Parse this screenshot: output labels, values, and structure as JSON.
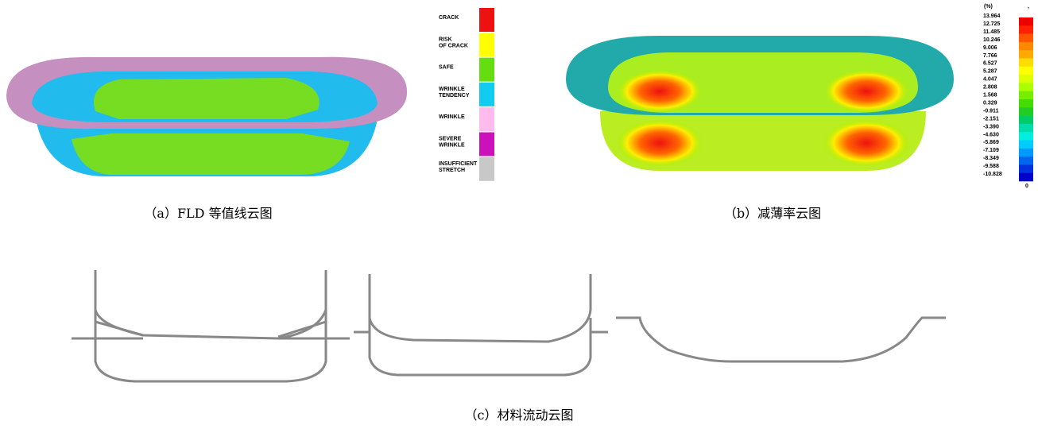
{
  "panel_a": {
    "caption": "（a）FLD 等值线云图",
    "legend": [
      {
        "label": "CRACK",
        "color": "#ee1111"
      },
      {
        "label": "RISK OF CRACK",
        "color": "#ffff00"
      },
      {
        "label": "SAFE",
        "color": "#66dd11"
      },
      {
        "label": "WRINKLE TENDENCY",
        "color": "#11ccee"
      },
      {
        "label": "WRINKLE",
        "color": "#ffbbee"
      },
      {
        "label": "SEVERE WRINKLE",
        "color": "#cc11bb"
      },
      {
        "label": "INSUFFICIENT STRETCH",
        "color": "#c8c8c8"
      }
    ]
  },
  "panel_b": {
    "caption": "（b）减薄率云图",
    "unit": "(%)",
    "top_mark": ",",
    "bottom_mark": "0",
    "labels": [
      "13.964",
      "12.725",
      "11.485",
      "10.246",
      "9.006",
      "7.766",
      "6.527",
      "5.287",
      "4.047",
      "2.808",
      "1.568",
      "0.329",
      "-0.911",
      "-2.151",
      "-3.390",
      "-4.630",
      "-5.869",
      "-7.109",
      "-8.349",
      "-9.588",
      "-10.828"
    ],
    "colors": [
      "#ee0000",
      "#ff2200",
      "#ff5500",
      "#ff8800",
      "#ffaa00",
      "#ffdd00",
      "#ffff00",
      "#ddff00",
      "#aaff00",
      "#77ee00",
      "#44dd00",
      "#22cc22",
      "#00cc66",
      "#00ddaa",
      "#00eedd",
      "#00ccff",
      "#0099ff",
      "#0066ee",
      "#0033dd",
      "#0000cc"
    ]
  },
  "panel_c": {
    "caption": "（c）材料流动云图"
  }
}
